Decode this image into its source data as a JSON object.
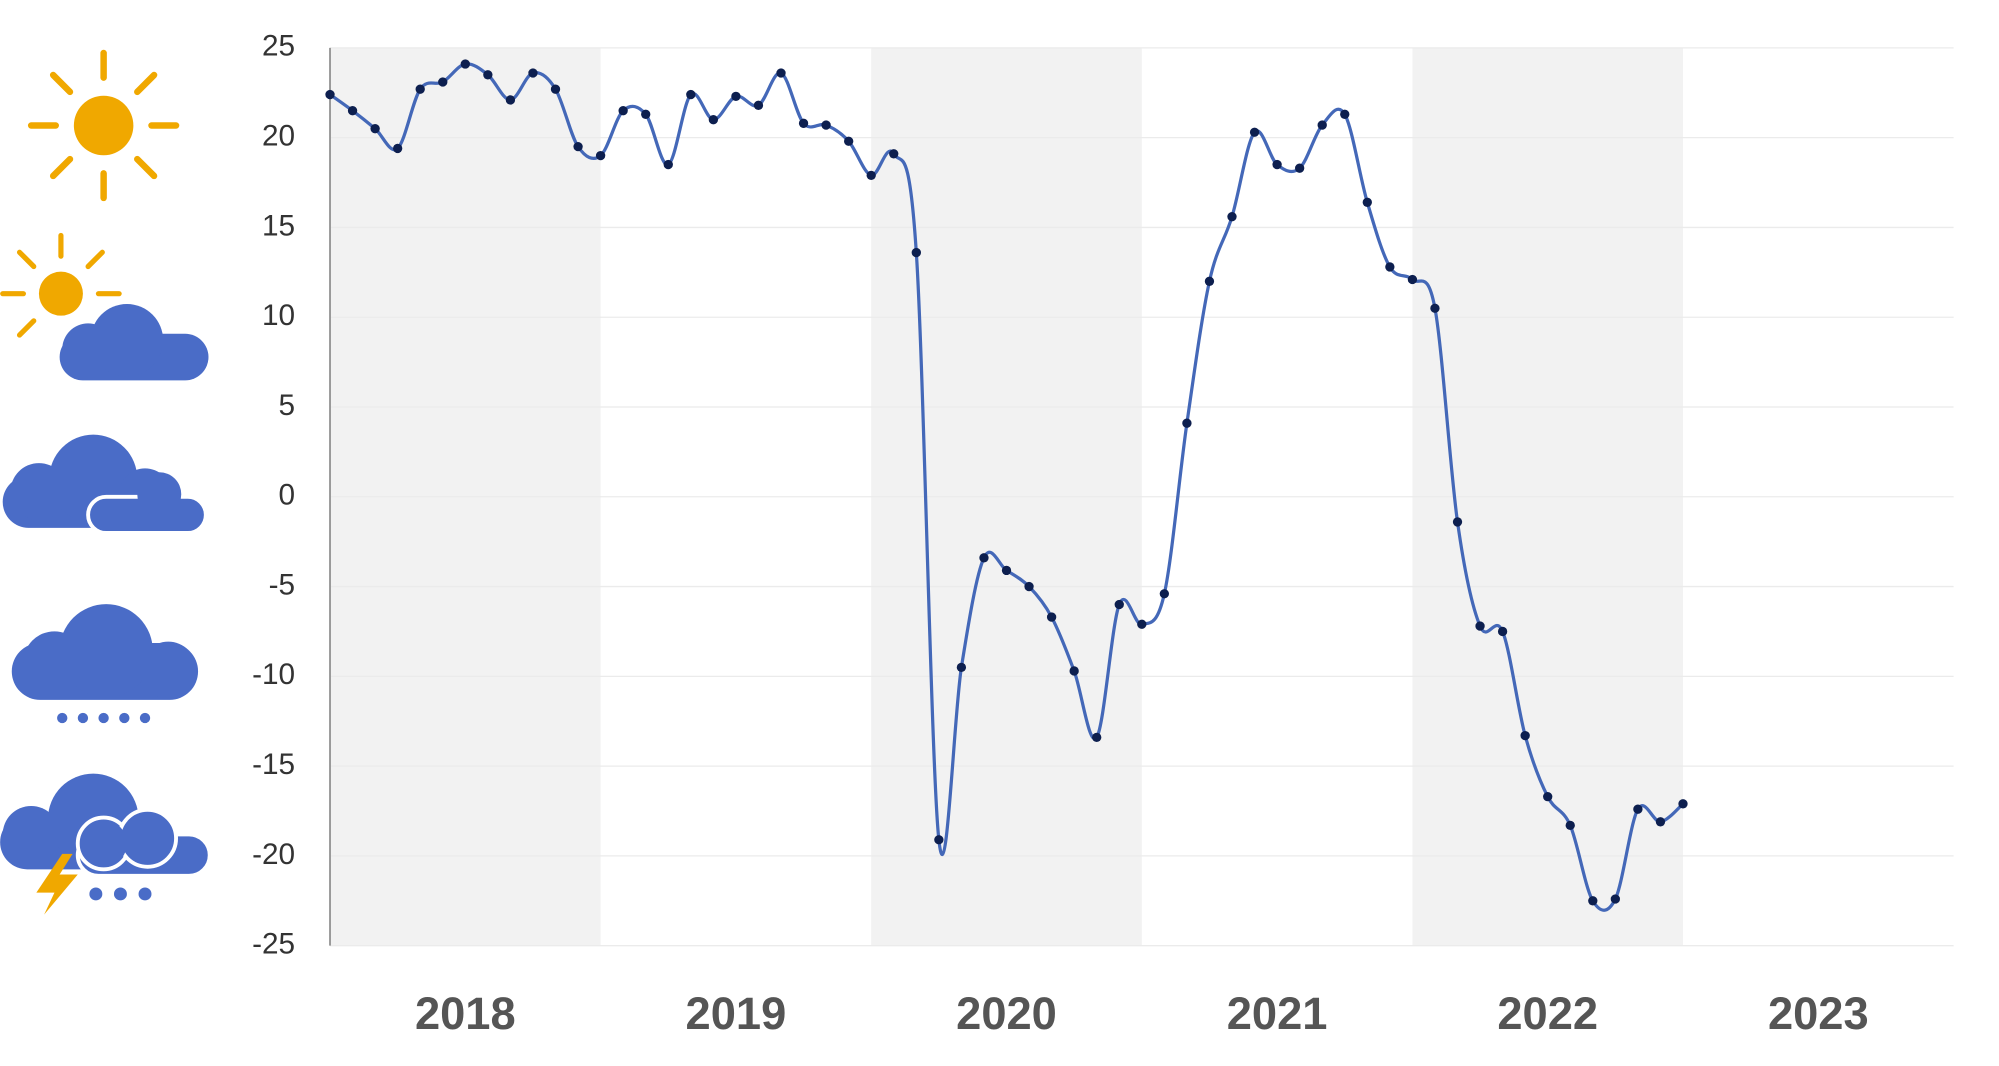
{
  "chart_data": {
    "type": "line",
    "x": [
      2018,
      2018.0833,
      2018.1667,
      2018.25,
      2018.3333,
      2018.4167,
      2018.5,
      2018.5833,
      2018.6667,
      2018.75,
      2018.8333,
      2018.9167,
      2019,
      2019.0833,
      2019.1667,
      2019.25,
      2019.3333,
      2019.4167,
      2019.5,
      2019.5833,
      2019.6667,
      2019.75,
      2019.8333,
      2019.9167,
      2020,
      2020.0833,
      2020.1667,
      2020.25,
      2020.3333,
      2020.4167,
      2020.5,
      2020.5833,
      2020.6667,
      2020.75,
      2020.8333,
      2020.9167,
      2021,
      2021.0833,
      2021.1667,
      2021.25,
      2021.3333,
      2021.4167,
      2021.5,
      2021.5833,
      2021.6667,
      2021.75,
      2021.8333,
      2021.9167,
      2022,
      2022.0833,
      2022.1667,
      2022.25,
      2022.3333,
      2022.4167,
      2022.5,
      2022.5833,
      2022.6667,
      2022.75,
      2022.8333,
      2022.9167,
      2023
    ],
    "series": [
      {
        "color": "#4468b8",
        "marker_color": "#0d1f4f",
        "values": [
          22.4,
          21.5,
          20.5,
          19.4,
          22.7,
          23.1,
          24.1,
          23.5,
          22.1,
          23.6,
          22.7,
          19.5,
          19.0,
          21.5,
          21.3,
          18.5,
          22.4,
          21.0,
          22.3,
          21.8,
          23.6,
          20.8,
          20.7,
          19.8,
          17.9,
          19.1,
          13.6,
          -19.1,
          -9.5,
          -3.4,
          -4.1,
          -5.0,
          -6.7,
          -9.7,
          -13.4,
          -6.0,
          -7.1,
          -5.4,
          4.1,
          12.0,
          15.6,
          20.3,
          18.5,
          18.3,
          20.7,
          21.3,
          16.4,
          12.8,
          12.1,
          10.5,
          -1.4,
          -7.2,
          -7.5,
          -13.3,
          -16.7,
          -18.3,
          -22.5,
          -22.4,
          -17.4,
          -18.1,
          -17.1
        ]
      }
    ],
    "xlim": [
      2018,
      2024
    ],
    "xticks": [
      {
        "value": 2018.5,
        "label": "2018"
      },
      {
        "value": 2019.5,
        "label": "2019"
      },
      {
        "value": 2020.5,
        "label": "2020"
      },
      {
        "value": 2021.5,
        "label": "2021"
      },
      {
        "value": 2022.5,
        "label": "2022"
      },
      {
        "value": 2023.5,
        "label": "2023"
      }
    ],
    "ylim": [
      -25,
      25
    ],
    "yticks": [
      25,
      20,
      15,
      10,
      5,
      0,
      -5,
      -10,
      -15,
      -20,
      -25
    ],
    "grid": true
  }
}
